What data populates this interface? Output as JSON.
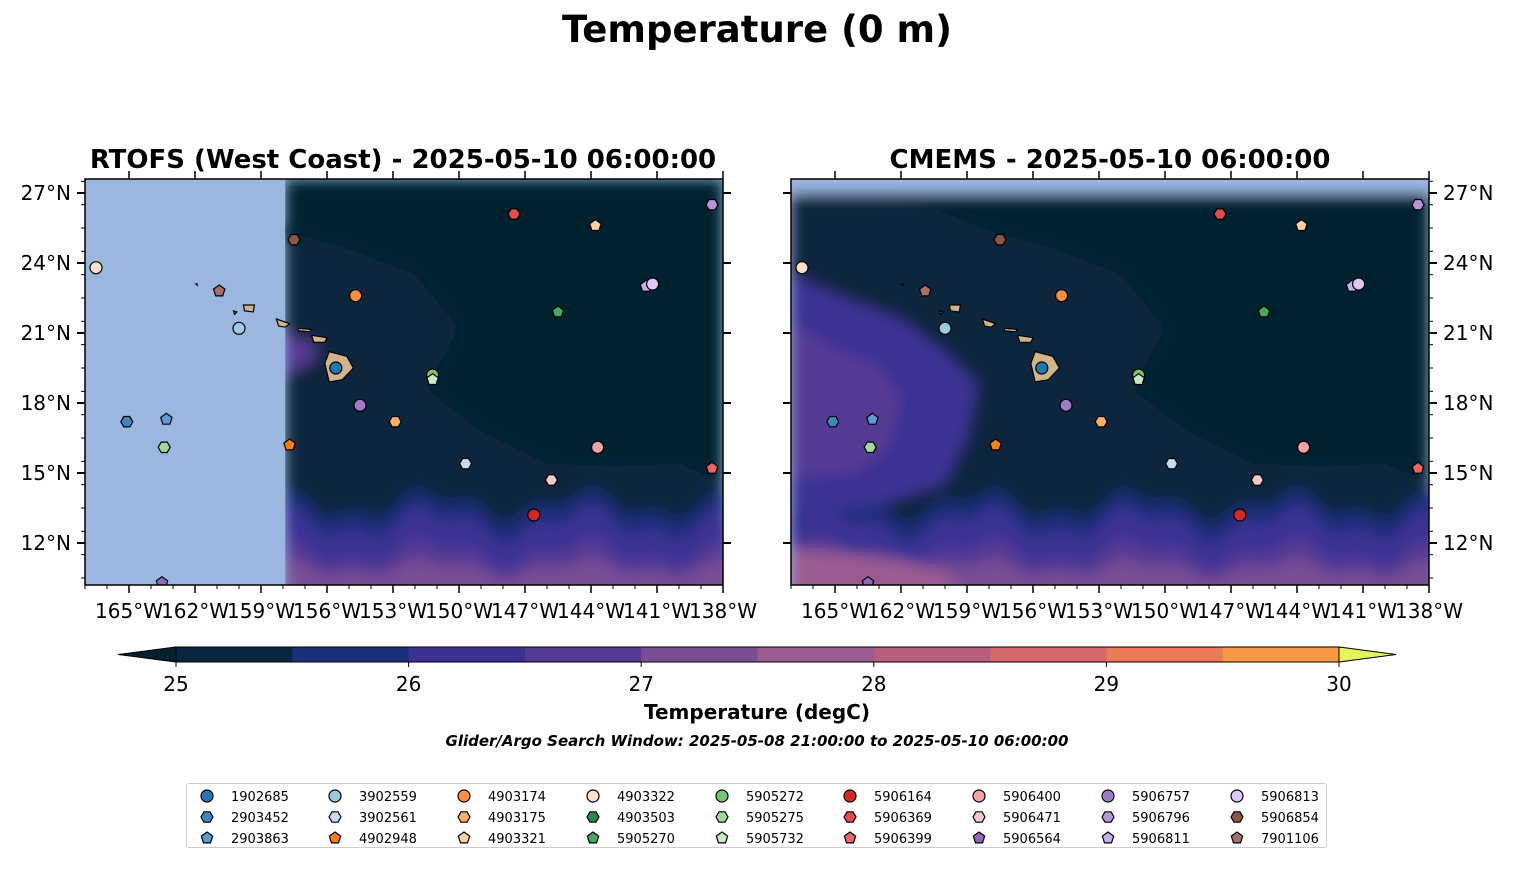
{
  "figure": {
    "title": "Temperature (0 m)",
    "colorbar_label": "Temperature (degC)",
    "search_window": "Glider/Argo Search Window: 2025-05-08 21:00:00 to 2025-05-10 06:00:00"
  },
  "colors": {
    "land": "#d2b48c",
    "nodata": "#9ab7e0",
    "colormap": [
      "#04202f",
      "#08263e",
      "#1c2f7a",
      "#3a3193",
      "#573a94",
      "#784d94",
      "#9a5b90",
      "#b95d7c",
      "#d4686a",
      "#ea7a58",
      "#f89a42",
      "#f7c23b",
      "#e4f55c"
    ]
  },
  "colorbar": {
    "levels": [
      25,
      25.5,
      26,
      26.5,
      27,
      27.5,
      28,
      28.5,
      29,
      29.5,
      30
    ],
    "ticks": [
      "25",
      "26",
      "27",
      "28",
      "29",
      "30"
    ],
    "extend": "both"
  },
  "chart_data": [
    {
      "type": "heatmap",
      "title": "RTOFS (West Coast) - 2025-05-10 06:00:00",
      "xlim": [
        -167,
        -138
      ],
      "ylim": [
        10.2,
        27.6
      ],
      "xticks": [
        "165°W",
        "162°W",
        "159°W",
        "156°W",
        "153°W",
        "150°W",
        "147°W",
        "144°W",
        "141°W",
        "138°W"
      ],
      "yticks": [
        "27°N",
        "24°N",
        "21°N",
        "18°N",
        "15°N",
        "12°N"
      ],
      "yaxis_side": "left",
      "model_domain_west_lon": -157.9,
      "nodata_band_north": false
    },
    {
      "type": "heatmap",
      "title": "CMEMS - 2025-05-10 06:00:00",
      "xlim": [
        -167,
        -138
      ],
      "ylim": [
        10.2,
        27.6
      ],
      "xticks": [
        "165°W",
        "162°W",
        "159°W",
        "156°W",
        "153°W",
        "150°W",
        "147°W",
        "144°W",
        "141°W",
        "138°W"
      ],
      "yticks": [
        "27°N",
        "24°N",
        "21°N",
        "18°N",
        "15°N",
        "12°N"
      ],
      "yaxis_side": "right",
      "model_domain_west_lon": -167,
      "nodata_band_north": true
    }
  ],
  "floats": [
    {
      "id": "1902685",
      "marker": "circle",
      "color": "#1f77b4",
      "lon": -155.6,
      "lat": 19.5
    },
    {
      "id": "2903452",
      "marker": "hexagon",
      "color": "#3d87c0",
      "lon": -165.1,
      "lat": 17.2
    },
    {
      "id": "2903863",
      "marker": "pentagon",
      "color": "#5c9cd6",
      "lon": -163.3,
      "lat": 17.3
    },
    {
      "id": "3902559",
      "marker": "circle",
      "color": "#9ecae1",
      "lon": -160.0,
      "lat": 21.2
    },
    {
      "id": "3902561",
      "marker": "hexagon",
      "color": "#c6dbef",
      "lon": -149.7,
      "lat": 15.4
    },
    {
      "id": "4902948",
      "marker": "pentagon",
      "color": "#ff7f0e",
      "lon": -157.7,
      "lat": 16.2
    },
    {
      "id": "4903174",
      "marker": "circle",
      "color": "#fd8d3c",
      "lon": -154.7,
      "lat": 22.6
    },
    {
      "id": "4903175",
      "marker": "hexagon",
      "color": "#fdae6b",
      "lon": -152.9,
      "lat": 17.2
    },
    {
      "id": "4903321",
      "marker": "pentagon",
      "color": "#fdd0a2",
      "lon": -143.8,
      "lat": 25.6
    },
    {
      "id": "4903322",
      "marker": "circle",
      "color": "#fee1c8",
      "lon": -166.5,
      "lat": 23.8
    },
    {
      "id": "4903503",
      "marker": "hexagon",
      "color": "#238b45",
      "lon": -151.2,
      "lat": 19.1
    },
    {
      "id": "5905270",
      "marker": "pentagon",
      "color": "#41ab5d",
      "lon": -145.5,
      "lat": 21.9
    },
    {
      "id": "5905272",
      "marker": "circle",
      "color": "#74c476",
      "lon": -151.2,
      "lat": 19.2
    },
    {
      "id": "5905275",
      "marker": "hexagon",
      "color": "#a1d99b",
      "lon": -163.4,
      "lat": 16.1
    },
    {
      "id": "5905732",
      "marker": "pentagon",
      "color": "#c7e9c0",
      "lon": -151.2,
      "lat": 19.0
    },
    {
      "id": "5906164",
      "marker": "circle",
      "color": "#d62728",
      "lon": -146.6,
      "lat": 13.2
    },
    {
      "id": "5906369",
      "marker": "hexagon",
      "color": "#e34a4a",
      "lon": -147.5,
      "lat": 26.1
    },
    {
      "id": "5906399",
      "marker": "pentagon",
      "color": "#f06464",
      "lon": -138.5,
      "lat": 15.2
    },
    {
      "id": "5906400",
      "marker": "circle",
      "color": "#f4a3a3",
      "lon": -143.7,
      "lat": 16.1
    },
    {
      "id": "5906471",
      "marker": "hexagon",
      "color": "#f9c8c8",
      "lon": -145.8,
      "lat": 14.7
    },
    {
      "id": "5906564",
      "marker": "pentagon",
      "color": "#9467bd",
      "lon": -163.5,
      "lat": 10.3
    },
    {
      "id": "5906757",
      "marker": "circle",
      "color": "#9f7bc9",
      "lon": -154.5,
      "lat": 17.9
    },
    {
      "id": "5906796",
      "marker": "hexagon",
      "color": "#b594db",
      "lon": -138.5,
      "lat": 26.5
    },
    {
      "id": "5906811",
      "marker": "pentagon",
      "color": "#c8aeed",
      "lon": -141.5,
      "lat": 23.0
    },
    {
      "id": "5906813",
      "marker": "circle",
      "color": "#dcc8f5",
      "lon": -141.2,
      "lat": 23.1
    },
    {
      "id": "5906854",
      "marker": "hexagon",
      "color": "#8c564b",
      "lon": -157.5,
      "lat": 25.0
    },
    {
      "id": "7901106",
      "marker": "pentagon",
      "color": "#a8706a",
      "lon": -160.9,
      "lat": 22.8
    }
  ]
}
